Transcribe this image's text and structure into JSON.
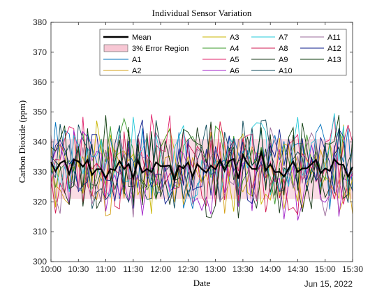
{
  "chart_data": {
    "type": "line",
    "title": "Individual Sensor Variation",
    "xlabel": "Date",
    "ylabel": "Carbon Dioxide (ppm)",
    "date_label": "Jun 15, 2022",
    "x_ticks": [
      "10:00",
      "10:30",
      "11:00",
      "11:30",
      "12:00",
      "12:30",
      "13:00",
      "13:30",
      "14:00",
      "14:30",
      "15:00",
      "15:30"
    ],
    "x_range": [
      "10:00",
      "15:30"
    ],
    "ylim": [
      300,
      380
    ],
    "y_ticks": [
      300,
      310,
      320,
      330,
      340,
      350,
      360,
      370,
      380
    ],
    "grid": false,
    "legend_position": "top-right",
    "legend": [
      {
        "label": "Mean",
        "color": "#000000",
        "kind": "thick-line"
      },
      {
        "label": "3% Error Region",
        "color": "#f7c7d4",
        "kind": "patch"
      },
      {
        "label": "A1",
        "color": "#0072bd",
        "kind": "line"
      },
      {
        "label": "A2",
        "color": "#d4a017",
        "kind": "line"
      },
      {
        "label": "A3",
        "color": "#c8b400",
        "kind": "line"
      },
      {
        "label": "A4",
        "color": "#3a9a2a",
        "kind": "line"
      },
      {
        "label": "A5",
        "color": "#e0206a",
        "kind": "line"
      },
      {
        "label": "A6",
        "color": "#a020c8",
        "kind": "line"
      },
      {
        "label": "A7",
        "color": "#22c8d8",
        "kind": "line"
      },
      {
        "label": "A8",
        "color": "#d01850",
        "kind": "line"
      },
      {
        "label": "A9",
        "color": "#1a3a1a",
        "kind": "line"
      },
      {
        "label": "A10",
        "color": "#0d4a5a",
        "kind": "line"
      },
      {
        "label": "A11",
        "color": "#9a6a9a",
        "kind": "line"
      },
      {
        "label": "A12",
        "color": "#0a1a8a",
        "kind": "line"
      },
      {
        "label": "A13",
        "color": "#0a3a0a",
        "kind": "line"
      }
    ],
    "series_colors": [
      "#0072bd",
      "#d4a017",
      "#c8b400",
      "#3a9a2a",
      "#e0206a",
      "#a020c8",
      "#22c8d8",
      "#d01850",
      "#1a3a1a",
      "#0d4a5a",
      "#9a6a9a",
      "#0a1a8a",
      "#0a3a0a"
    ],
    "series_names": [
      "A1",
      "A2",
      "A3",
      "A4",
      "A5",
      "A6",
      "A7",
      "A8",
      "A9",
      "A10",
      "A11",
      "A12",
      "A13"
    ],
    "mean_approx": 331,
    "error_region": [
      321,
      341
    ],
    "error_region_color": "#f9d6e0",
    "sensor_value_range": [
      308,
      355
    ],
    "sample_count": 67
  }
}
